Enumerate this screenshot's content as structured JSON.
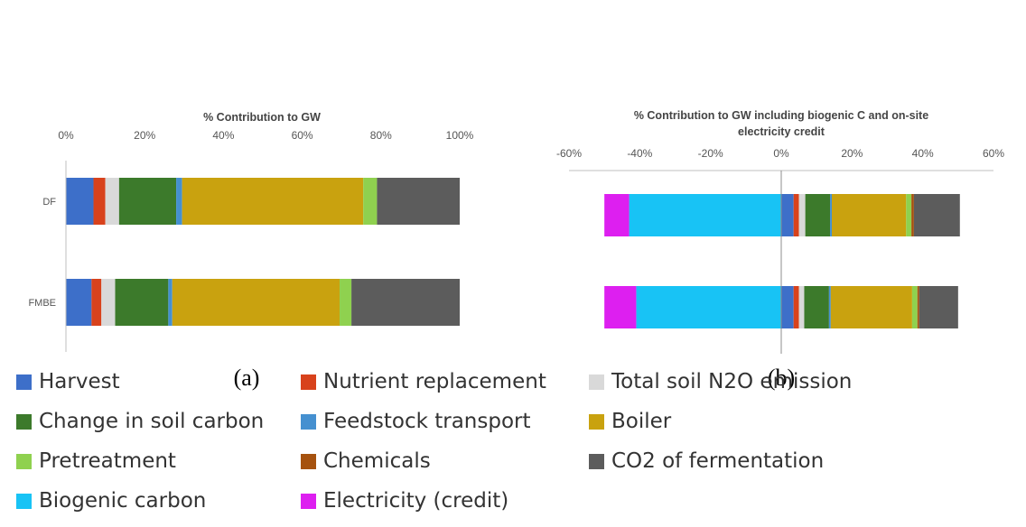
{
  "colors": {
    "Harvest": "#3d6fc9",
    "Nutrient replacement": "#d8421c",
    "Total soil N2O emission": "#d9d9d9",
    "Change in soil carbon": "#3c7a2b",
    "Feedstock transport": "#4590d0",
    "Boiler": "#c9a20f",
    "Pretreatment": "#8fd14f",
    "Chemicals": "#a6520f",
    "CO2 of fermentation": "#5c5c5c",
    "Biogenic carbon": "#18c3f5",
    "Electricity (credit)": "#dd1ff0"
  },
  "panel_labels": [
    "(a)",
    "(b)"
  ],
  "legend": [
    "Harvest",
    "Nutrient replacement",
    "Total soil N2O emission",
    "Change in soil carbon",
    "Feedstock transport",
    "Boiler",
    "Pretreatment",
    "Chemicals",
    "CO2 of fermentation",
    "Biogenic carbon",
    "Electricity (credit)"
  ],
  "chart_data": [
    {
      "type": "bar",
      "orientation": "horizontal",
      "stacked": true,
      "title": "% Contribution to GW",
      "categories": [
        "DF",
        "FMBE"
      ],
      "xlim": [
        0,
        100
      ],
      "xticks": [
        "0%",
        "20%",
        "40%",
        "60%",
        "80%",
        "100%"
      ],
      "xtick_values": [
        0,
        20,
        40,
        60,
        80,
        100
      ],
      "axis_position": "top",
      "series": [
        {
          "name": "Harvest",
          "values": [
            7,
            6.5
          ]
        },
        {
          "name": "Nutrient replacement",
          "values": [
            3,
            2.5
          ]
        },
        {
          "name": "Total soil N2O emission",
          "values": [
            3.5,
            3.5
          ]
        },
        {
          "name": "Change in soil carbon",
          "values": [
            14.5,
            13.5
          ]
        },
        {
          "name": "Feedstock transport",
          "values": [
            1.5,
            1
          ]
        },
        {
          "name": "Boiler",
          "values": [
            46,
            42.5
          ]
        },
        {
          "name": "Pretreatment",
          "values": [
            3.5,
            3
          ]
        },
        {
          "name": "Chemicals",
          "values": [
            0,
            0
          ]
        },
        {
          "name": "CO2 of fermentation",
          "values": [
            21,
            27.5
          ]
        }
      ]
    },
    {
      "type": "bar",
      "orientation": "horizontal",
      "stacked": true,
      "title": "% Contribution to GW including biogenic C and on-site electricity credit",
      "categories": [
        "DF",
        "FMBE"
      ],
      "xlim": [
        -60,
        60
      ],
      "xticks": [
        "-60%",
        "-40%",
        "-20%",
        "0%",
        "20%",
        "40%",
        "60%"
      ],
      "xtick_values": [
        -60,
        -40,
        -20,
        0,
        20,
        40,
        60
      ],
      "axis_position": "top",
      "series": [
        {
          "name": "Harvest",
          "values": [
            3.5,
            3.5
          ]
        },
        {
          "name": "Nutrient replacement",
          "values": [
            1.5,
            1.5
          ]
        },
        {
          "name": "Total soil N2O emission",
          "values": [
            1.8,
            1.5
          ]
        },
        {
          "name": "Change in soil carbon",
          "values": [
            7,
            7
          ]
        },
        {
          "name": "Feedstock transport",
          "values": [
            0.5,
            0.5
          ]
        },
        {
          "name": "Boiler",
          "values": [
            21,
            23
          ]
        },
        {
          "name": "Pretreatment",
          "values": [
            1.5,
            1.5
          ]
        },
        {
          "name": "Chemicals",
          "values": [
            0.7,
            0.5
          ]
        },
        {
          "name": "CO2 of fermentation",
          "values": [
            13,
            11
          ]
        },
        {
          "name": "Biogenic carbon",
          "values": [
            -43,
            -41
          ]
        },
        {
          "name": "Electricity (credit)",
          "values": [
            -7,
            -9
          ]
        }
      ]
    }
  ]
}
